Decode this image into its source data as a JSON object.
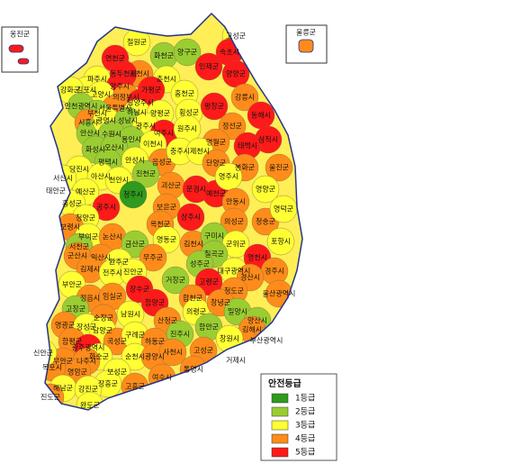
{
  "map": {
    "legend": {
      "title": "안전등급",
      "items": [
        {
          "label": "1등급",
          "color": "#2f9a1d"
        },
        {
          "label": "2등급",
          "color": "#9acd32"
        },
        {
          "label": "3등급",
          "color": "#ffff33"
        },
        {
          "label": "4등급",
          "color": "#ff8c1a"
        },
        {
          "label": "5등급",
          "color": "#ff1a1a"
        }
      ]
    },
    "insets": [
      {
        "label": "옹진군",
        "grade": 5
      },
      {
        "label": "울릉군",
        "grade": 4
      }
    ],
    "regions": [
      {
        "label": "철원군",
        "grade": 3
      },
      {
        "label": "화천군",
        "grade": 2
      },
      {
        "label": "양구군",
        "grade": 2
      },
      {
        "label": "고성군",
        "grade": 3
      },
      {
        "label": "인제군",
        "grade": 5
      },
      {
        "label": "속초시",
        "grade": 5
      },
      {
        "label": "양양군",
        "grade": 5
      },
      {
        "label": "연천군",
        "grade": 5
      },
      {
        "label": "포천시",
        "grade": 4
      },
      {
        "label": "파주시",
        "grade": 3
      },
      {
        "label": "동두천시",
        "grade": 5
      },
      {
        "label": "춘천시",
        "grade": 3
      },
      {
        "label": "홍천군",
        "grade": 3
      },
      {
        "label": "강릉시",
        "grade": 4
      },
      {
        "label": "가평군",
        "grade": 5
      },
      {
        "label": "양주시",
        "grade": 5
      },
      {
        "label": "김포시",
        "grade": 3
      },
      {
        "label": "고양시",
        "grade": 3
      },
      {
        "label": "의정부시",
        "grade": 4
      },
      {
        "label": "남양주시",
        "grade": 5
      },
      {
        "label": "강화군",
        "grade": 3
      },
      {
        "label": "인천광역시",
        "grade": 2
      },
      {
        "label": "서울특별시",
        "grade": 4
      },
      {
        "label": "하남시",
        "grade": 3
      },
      {
        "label": "양평군",
        "grade": 3
      },
      {
        "label": "횡성군",
        "grade": 3
      },
      {
        "label": "평창군",
        "grade": 5
      },
      {
        "label": "정선군",
        "grade": 4
      },
      {
        "label": "동해시",
        "grade": 5
      },
      {
        "label": "삼척시",
        "grade": 5
      },
      {
        "label": "부천시",
        "grade": 2
      },
      {
        "label": "시흥시",
        "grade": 4
      },
      {
        "label": "안산시",
        "grade": 2
      },
      {
        "label": "광명시",
        "grade": 3
      },
      {
        "label": "성남시",
        "grade": 2
      },
      {
        "label": "광주시",
        "grade": 3
      },
      {
        "label": "여주시",
        "grade": 5
      },
      {
        "label": "원주시",
        "grade": 3
      },
      {
        "label": "영월군",
        "grade": 4
      },
      {
        "label": "태백시",
        "grade": 5
      },
      {
        "label": "수원시",
        "grade": 2
      },
      {
        "label": "용인시",
        "grade": 2
      },
      {
        "label": "이천시",
        "grade": 3
      },
      {
        "label": "화성시",
        "grade": 2
      },
      {
        "label": "오산시",
        "grade": 2
      },
      {
        "label": "평택시",
        "grade": 2
      },
      {
        "label": "안성시",
        "grade": 3
      },
      {
        "label": "음성군",
        "grade": 4
      },
      {
        "label": "충주시",
        "grade": 3
      },
      {
        "label": "제천시",
        "grade": 3
      },
      {
        "label": "단양군",
        "grade": 4
      },
      {
        "label": "봉화군",
        "grade": 4
      },
      {
        "label": "울진군",
        "grade": 4
      },
      {
        "label": "당진시",
        "grade": 3
      },
      {
        "label": "아산시",
        "grade": 3
      },
      {
        "label": "천안시",
        "grade": 3
      },
      {
        "label": "진천군",
        "grade": 2
      },
      {
        "label": "괴산군",
        "grade": 4
      },
      {
        "label": "서산시",
        "grade": 3
      },
      {
        "label": "태안군",
        "grade": 3
      },
      {
        "label": "예산군",
        "grade": 3
      },
      {
        "label": "청주시",
        "grade": 1
      },
      {
        "label": "보은군",
        "grade": 4
      },
      {
        "label": "문경시",
        "grade": 5
      },
      {
        "label": "예천군",
        "grade": 5
      },
      {
        "label": "영주시",
        "grade": 3
      },
      {
        "label": "영양군",
        "grade": 3
      },
      {
        "label": "안동시",
        "grade": 4
      },
      {
        "label": "홍성군",
        "grade": 3
      },
      {
        "label": "공주시",
        "grade": 5
      },
      {
        "label": "청양군",
        "grade": 3
      },
      {
        "label": "옥천군",
        "grade": 4
      },
      {
        "label": "상주시",
        "grade": 5
      },
      {
        "label": "의성군",
        "grade": 4
      },
      {
        "label": "청송군",
        "grade": 4
      },
      {
        "label": "영덕군",
        "grade": 3
      },
      {
        "label": "보령시",
        "grade": 4
      },
      {
        "label": "부여군",
        "grade": 3
      },
      {
        "label": "논산시",
        "grade": 4
      },
      {
        "label": "금산군",
        "grade": 2
      },
      {
        "label": "영동군",
        "grade": 3
      },
      {
        "label": "김천시",
        "grade": 4
      },
      {
        "label": "구미시",
        "grade": 2
      },
      {
        "label": "군위군",
        "grade": 3
      },
      {
        "label": "포항시",
        "grade": 3
      },
      {
        "label": "서천군",
        "grade": 2
      },
      {
        "label": "익산시",
        "grade": 4
      },
      {
        "label": "완주군",
        "grade": 3
      },
      {
        "label": "무주군",
        "grade": 4
      },
      {
        "label": "칠곡군",
        "grade": 2
      },
      {
        "label": "영천시",
        "grade": 5
      },
      {
        "label": "경주시",
        "grade": 4
      },
      {
        "label": "군산시",
        "grade": 4
      },
      {
        "label": "김제시",
        "grade": 4
      },
      {
        "label": "전주시",
        "grade": 3
      },
      {
        "label": "진안군",
        "grade": 3
      },
      {
        "label": "성주군",
        "grade": 2
      },
      {
        "label": "대구광역시",
        "grade": 3
      },
      {
        "label": "경산시",
        "grade": 4
      },
      {
        "label": "부안군",
        "grade": 3
      },
      {
        "label": "정읍시",
        "grade": 4
      },
      {
        "label": "임실군",
        "grade": 4
      },
      {
        "label": "장수군",
        "grade": 5
      },
      {
        "label": "거창군",
        "grade": 2
      },
      {
        "label": "고령군",
        "grade": 5
      },
      {
        "label": "합천군",
        "grade": 4
      },
      {
        "label": "청도군",
        "grade": 4
      },
      {
        "label": "울산광역시",
        "grade": 4
      },
      {
        "label": "고창군",
        "grade": 2
      },
      {
        "label": "순창군",
        "grade": 4
      },
      {
        "label": "남원시",
        "grade": 3
      },
      {
        "label": "함양군",
        "grade": 5
      },
      {
        "label": "산청군",
        "grade": 4
      },
      {
        "label": "의령군",
        "grade": 3
      },
      {
        "label": "창녕군",
        "grade": 4
      },
      {
        "label": "밀양시",
        "grade": 2
      },
      {
        "label": "양산시",
        "grade": 2
      },
      {
        "label": "영광군",
        "grade": 4
      },
      {
        "label": "장성군",
        "grade": 3
      },
      {
        "label": "담양군",
        "grade": 3
      },
      {
        "label": "곡성군",
        "grade": 4
      },
      {
        "label": "구례군",
        "grade": 3
      },
      {
        "label": "하동군",
        "grade": 4
      },
      {
        "label": "진주시",
        "grade": 2
      },
      {
        "label": "함안군",
        "grade": 2
      },
      {
        "label": "김해시",
        "grade": 4
      },
      {
        "label": "부산광역시",
        "grade": 4
      },
      {
        "label": "창원시",
        "grade": 3
      },
      {
        "label": "함평군",
        "grade": 4
      },
      {
        "label": "광주광역시",
        "grade": 5
      },
      {
        "label": "화순군",
        "grade": 3
      },
      {
        "label": "순천시",
        "grade": 3
      },
      {
        "label": "광양시",
        "grade": 4
      },
      {
        "label": "사천시",
        "grade": 4
      },
      {
        "label": "고성군",
        "grade": 4
      },
      {
        "label": "통영시",
        "grade": 4
      },
      {
        "label": "거제시",
        "grade": 4
      },
      {
        "label": "무안군",
        "grade": 4
      },
      {
        "label": "나주시",
        "grade": 4
      },
      {
        "label": "영암군",
        "grade": 4
      },
      {
        "label": "보성군",
        "grade": 3
      },
      {
        "label": "장흥군",
        "grade": 3
      },
      {
        "label": "여수시",
        "grade": 4
      },
      {
        "label": "목포시",
        "grade": 4
      },
      {
        "label": "해남군",
        "grade": 3
      },
      {
        "label": "강진군",
        "grade": 3
      },
      {
        "label": "고흥군",
        "grade": 4
      },
      {
        "label": "완도군",
        "grade": 3
      },
      {
        "label": "진도군",
        "grade": 4
      },
      {
        "label": "신안군",
        "grade": 3
      }
    ]
  }
}
